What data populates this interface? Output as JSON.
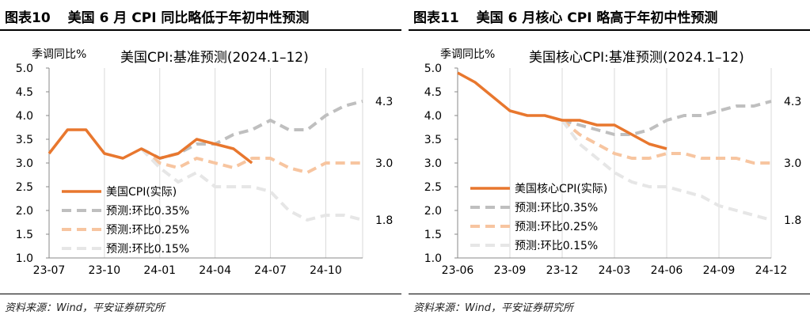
{
  "source_label": "资料来源：Wind，平安证券研究所",
  "chart_data": [
    {
      "type": "line",
      "figure_label": "图表10",
      "figure_title": "美国 6 月 CPI 同比略低于年初中性预测",
      "title": "美国CPI:基准预测(2024.1–12)",
      "ylabel": "季调同比%",
      "x_tick_labels": [
        "23-07",
        "23-10",
        "24-01",
        "24-04",
        "24-07",
        "24-10"
      ],
      "x_range": [
        0,
        17
      ],
      "ylim": [
        1.0,
        5.0
      ],
      "y_ticks": [
        1.0,
        1.5,
        2.0,
        2.5,
        3.0,
        3.5,
        4.0,
        4.5,
        5.0
      ],
      "gridlines": "vertical",
      "legend_position": "lower-left",
      "series": [
        {
          "name": "美国CPI(实际)",
          "color": "#E8772E",
          "dash": "solid",
          "x": [
            0,
            1,
            2,
            3,
            4,
            5,
            6,
            7,
            8,
            9,
            10,
            11
          ],
          "y": [
            3.2,
            3.7,
            3.7,
            3.2,
            3.1,
            3.3,
            3.1,
            3.2,
            3.5,
            3.4,
            3.3,
            3.0
          ]
        },
        {
          "name": "预测:环比0.35%",
          "color": "#BFBFBF",
          "dash": "dashed",
          "x": [
            5,
            6,
            7,
            8,
            9,
            10,
            11,
            12,
            13,
            14,
            15,
            16,
            17
          ],
          "y": [
            3.3,
            3.1,
            3.2,
            3.4,
            3.4,
            3.6,
            3.7,
            3.9,
            3.7,
            3.7,
            4.0,
            4.2,
            4.3
          ],
          "end_label": "4.3"
        },
        {
          "name": "预测:环比0.25%",
          "color": "#F7C5A0",
          "dash": "dashed",
          "x": [
            5,
            6,
            7,
            8,
            9,
            10,
            11,
            12,
            13,
            14,
            15,
            16,
            17
          ],
          "y": [
            3.3,
            3.0,
            2.9,
            3.1,
            3.0,
            2.9,
            3.1,
            3.1,
            2.9,
            2.8,
            3.0,
            3.0,
            3.0
          ],
          "end_label": "3.0"
        },
        {
          "name": "预测:环比0.15%",
          "color": "#E6E6E6",
          "dash": "dashed",
          "x": [
            5,
            6,
            7,
            8,
            9,
            10,
            11,
            12,
            13,
            14,
            15,
            16,
            17
          ],
          "y": [
            3.3,
            2.9,
            2.6,
            2.8,
            2.5,
            2.5,
            2.5,
            2.4,
            2.0,
            1.8,
            1.9,
            1.9,
            1.8
          ],
          "end_label": "1.8"
        }
      ]
    },
    {
      "type": "line",
      "figure_label": "图表11",
      "figure_title": "美国 6 月核心 CPI 略高于年初中性预测",
      "title": "美国核心CPI:基准预测(2024.1–12)",
      "ylabel": "季调同比%",
      "x_tick_labels": [
        "23-06",
        "23-09",
        "23-12",
        "24-03",
        "24-06",
        "24-09",
        "24-12"
      ],
      "x_range": [
        0,
        18
      ],
      "ylim": [
        1.0,
        5.0
      ],
      "y_ticks": [
        1.0,
        1.5,
        2.0,
        2.5,
        3.0,
        3.5,
        4.0,
        4.5,
        5.0
      ],
      "gridlines": "vertical",
      "legend_position": "lower-left",
      "series": [
        {
          "name": "美国核心CPI(实际)",
          "color": "#E8772E",
          "dash": "solid",
          "x": [
            0,
            1,
            2,
            3,
            4,
            5,
            6,
            7,
            8,
            9,
            10,
            11,
            12
          ],
          "y": [
            4.9,
            4.7,
            4.4,
            4.1,
            4.0,
            4.0,
            3.9,
            3.9,
            3.8,
            3.8,
            3.6,
            3.4,
            3.3
          ]
        },
        {
          "name": "预测:环比0.35%",
          "color": "#BFBFBF",
          "dash": "dashed",
          "x": [
            6,
            7,
            8,
            9,
            10,
            11,
            12,
            13,
            14,
            15,
            16,
            17,
            18
          ],
          "y": [
            3.9,
            3.8,
            3.7,
            3.6,
            3.6,
            3.7,
            3.9,
            4.0,
            4.0,
            4.1,
            4.2,
            4.2,
            4.3
          ],
          "end_label": "4.3"
        },
        {
          "name": "预测:环比0.25%",
          "color": "#F7C5A0",
          "dash": "dashed",
          "x": [
            6,
            7,
            8,
            9,
            10,
            11,
            12,
            13,
            14,
            15,
            16,
            17,
            18
          ],
          "y": [
            3.9,
            3.6,
            3.4,
            3.2,
            3.1,
            3.1,
            3.2,
            3.2,
            3.1,
            3.1,
            3.1,
            3.0,
            3.0
          ],
          "end_label": "3.0"
        },
        {
          "name": "预测:环比0.15%",
          "color": "#E6E6E6",
          "dash": "dashed",
          "x": [
            6,
            7,
            8,
            9,
            10,
            11,
            12,
            13,
            14,
            15,
            16,
            17,
            18
          ],
          "y": [
            3.9,
            3.4,
            3.1,
            2.8,
            2.6,
            2.5,
            2.5,
            2.4,
            2.3,
            2.1,
            2.0,
            1.9,
            1.8
          ],
          "end_label": "1.8"
        }
      ]
    }
  ]
}
